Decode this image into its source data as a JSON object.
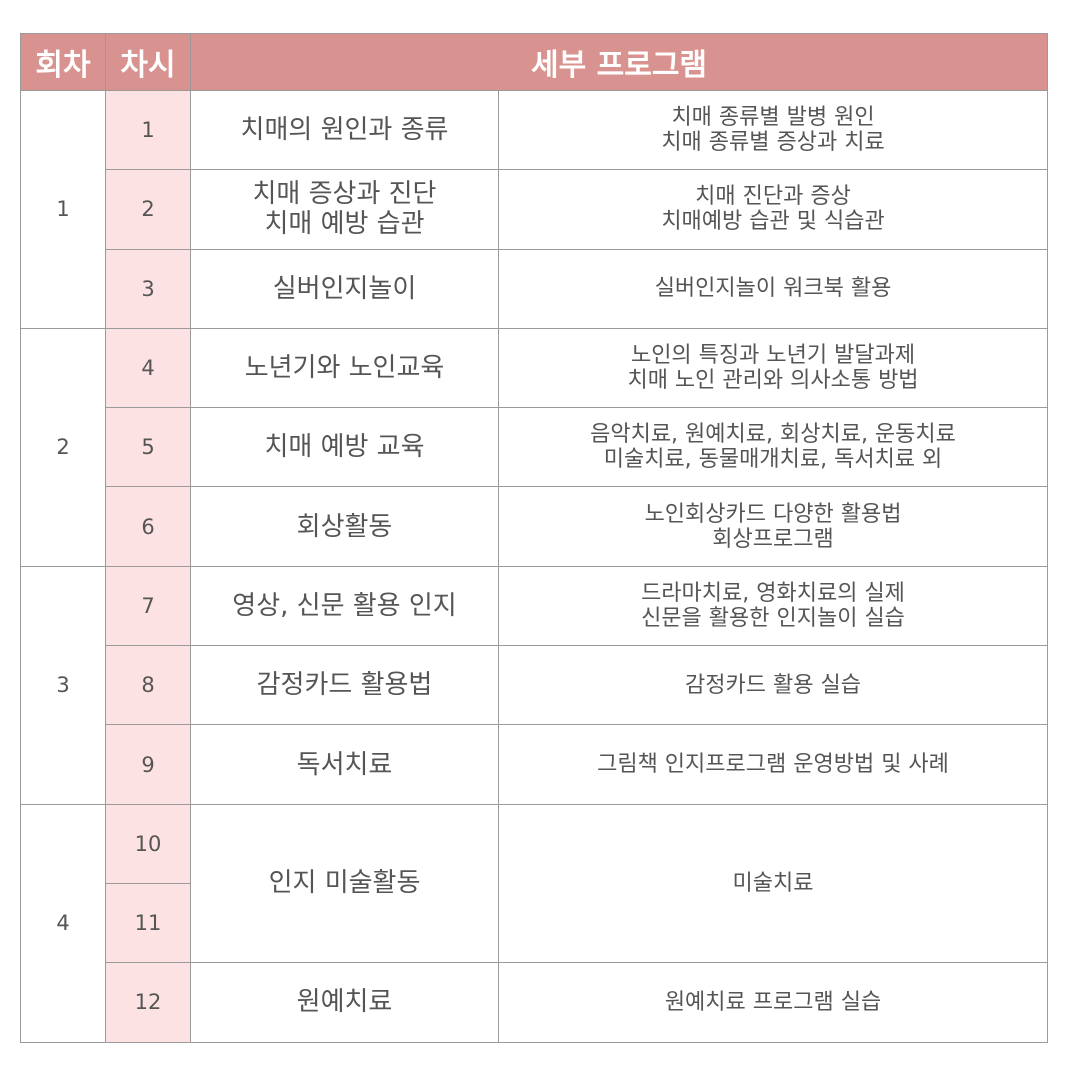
{
  "colors": {
    "header_bg": "#d8928f",
    "session_bg": "#fde2e3",
    "border": "#9a9a9a",
    "text": "#555555"
  },
  "headers": {
    "round": "회차",
    "session": "차시",
    "program": "세부 프로그램"
  },
  "rounds": [
    "1",
    "2",
    "3",
    "4"
  ],
  "sessions": [
    "1",
    "2",
    "3",
    "4",
    "5",
    "6",
    "7",
    "8",
    "9",
    "10",
    "11",
    "12"
  ],
  "programs": [
    [
      "치매의 원인과 종류"
    ],
    [
      "치매 증상과 진단",
      "치매 예방 습관"
    ],
    [
      "실버인지놀이"
    ],
    [
      "노년기와 노인교육"
    ],
    [
      "치매 예방 교육"
    ],
    [
      "회상활동"
    ],
    [
      "영상, 신문 활용 인지"
    ],
    [
      "감정카드 활용법"
    ],
    [
      "독서치료"
    ],
    [
      "인지 미술활동"
    ],
    [
      "원예치료"
    ]
  ],
  "details": [
    [
      "치매 종류별 발병 원인",
      "치매 종류별 증상과 치료"
    ],
    [
      "치매 진단과 증상",
      "치매예방 습관 및 식습관"
    ],
    [
      "실버인지놀이 워크북 활용"
    ],
    [
      "노인의 특징과 노년기 발달과제",
      "치매 노인 관리와 의사소통 방법"
    ],
    [
      "음악치료, 원예치료, 회상치료, 운동치료",
      "미술치료, 동물매개치료, 독서치료 외"
    ],
    [
      "노인회상카드 다양한 활용법",
      "회상프로그램"
    ],
    [
      "드라마치료, 영화치료의 실제",
      "신문을 활용한 인지놀이 실습"
    ],
    [
      "감정카드 활용 실습"
    ],
    [
      "그림책 인지프로그램 운영방법 및 사례"
    ],
    [
      "미술치료"
    ],
    [
      "원예치료 프로그램 실습"
    ]
  ]
}
